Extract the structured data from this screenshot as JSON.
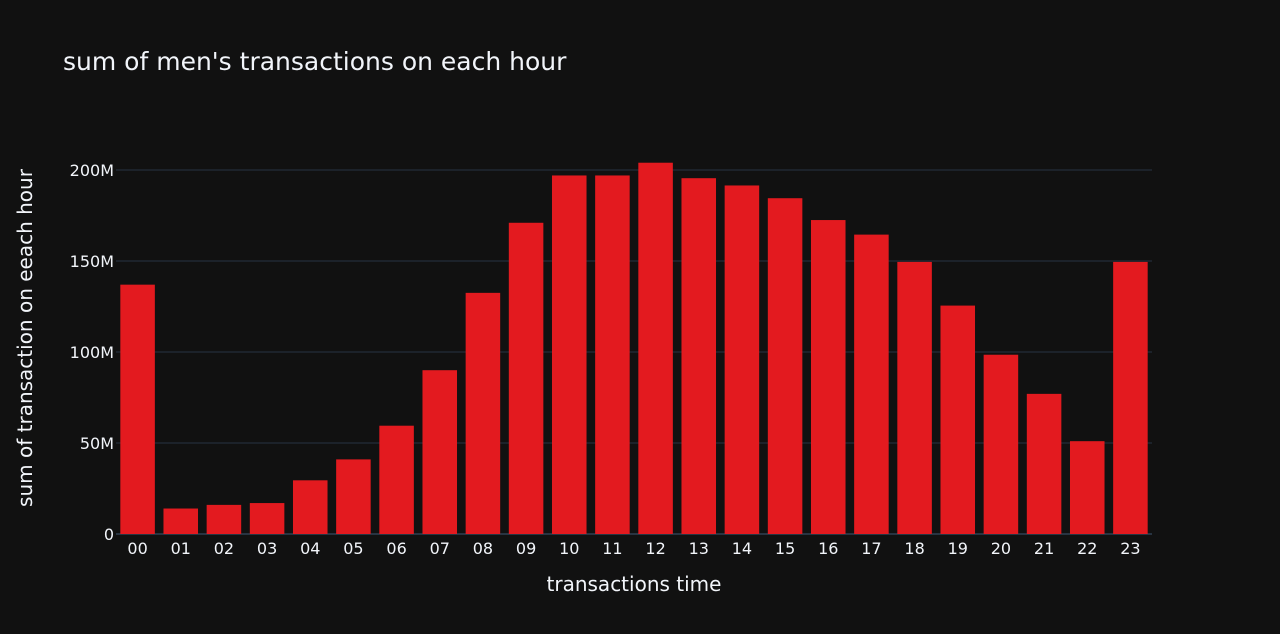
{
  "chart_data": {
    "type": "bar",
    "title": "sum of men's transactions on each hour",
    "xlabel": "transactions time",
    "ylabel": "sum of transaction on eeach hour",
    "categories": [
      "00",
      "01",
      "02",
      "03",
      "04",
      "05",
      "06",
      "07",
      "08",
      "09",
      "10",
      "11",
      "12",
      "13",
      "14",
      "15",
      "16",
      "17",
      "18",
      "19",
      "20",
      "21",
      "22",
      "23"
    ],
    "values": [
      137000000,
      14000000,
      16000000,
      17000000,
      29500000,
      41000000,
      59500000,
      90000000,
      132500000,
      171000000,
      197000000,
      197000000,
      204000000,
      195500000,
      191500000,
      184500000,
      172500000,
      164500000,
      149500000,
      125500000,
      98500000,
      77000000,
      51000000,
      149500000
    ],
    "ylim": [
      0,
      200000000
    ],
    "yticks": [
      0,
      50000000,
      100000000,
      150000000,
      200000000
    ],
    "ytick_labels": [
      "0",
      "50M",
      "100M",
      "150M",
      "200M"
    ],
    "grid": true,
    "colors": {
      "background": "#111111",
      "bar": "#e31a1f",
      "grid": "#283442",
      "text": "#f2f5fa"
    }
  }
}
